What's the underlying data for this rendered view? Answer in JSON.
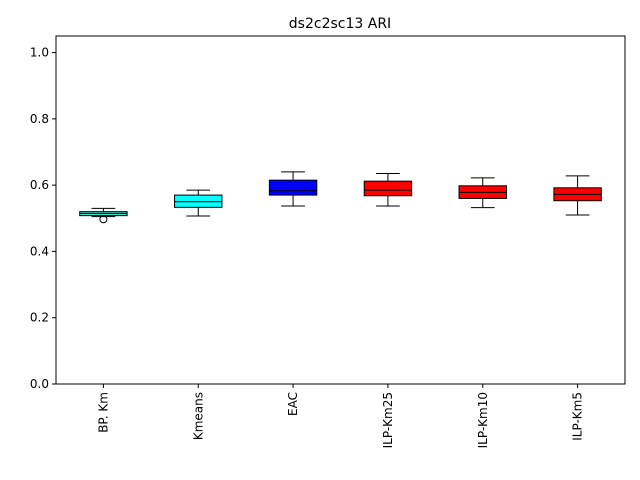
{
  "chart_data": {
    "type": "box",
    "title": "ds2c2sc13 ARI",
    "xlabel": "",
    "ylabel": "",
    "ylim": [
      0.0,
      1.05
    ],
    "yticks": [
      "0.0",
      "0.2",
      "0.4",
      "0.6",
      "0.8",
      "1.0"
    ],
    "grid": false,
    "categories": [
      "BP. Km",
      "Kmeans",
      "EAC",
      "ILP-Km25",
      "ILP-Km10",
      "ILP-Km5"
    ],
    "boxes": [
      {
        "label": "BP. Km",
        "whislo": 0.505,
        "q1": 0.508,
        "med": 0.515,
        "q3": 0.52,
        "whishi": 0.53,
        "fliers": [
          0.497
        ],
        "color": "#40e0d0"
      },
      {
        "label": "Kmeans",
        "whislo": 0.507,
        "q1": 0.533,
        "med": 0.55,
        "q3": 0.57,
        "whishi": 0.585,
        "fliers": [],
        "color": "#00ffff"
      },
      {
        "label": "EAC",
        "whislo": 0.537,
        "q1": 0.57,
        "med": 0.583,
        "q3": 0.615,
        "whishi": 0.64,
        "fliers": [],
        "color": "#0000ff"
      },
      {
        "label": "ILP-Km25",
        "whislo": 0.537,
        "q1": 0.568,
        "med": 0.585,
        "q3": 0.612,
        "whishi": 0.635,
        "fliers": [],
        "color": "#ff0000"
      },
      {
        "label": "ILP-Km10",
        "whislo": 0.532,
        "q1": 0.56,
        "med": 0.578,
        "q3": 0.598,
        "whishi": 0.622,
        "fliers": [],
        "color": "#ff0000"
      },
      {
        "label": "ILP-Km5",
        "whislo": 0.51,
        "q1": 0.553,
        "med": 0.572,
        "q3": 0.592,
        "whishi": 0.628,
        "fliers": [],
        "color": "#ff0000"
      }
    ]
  }
}
